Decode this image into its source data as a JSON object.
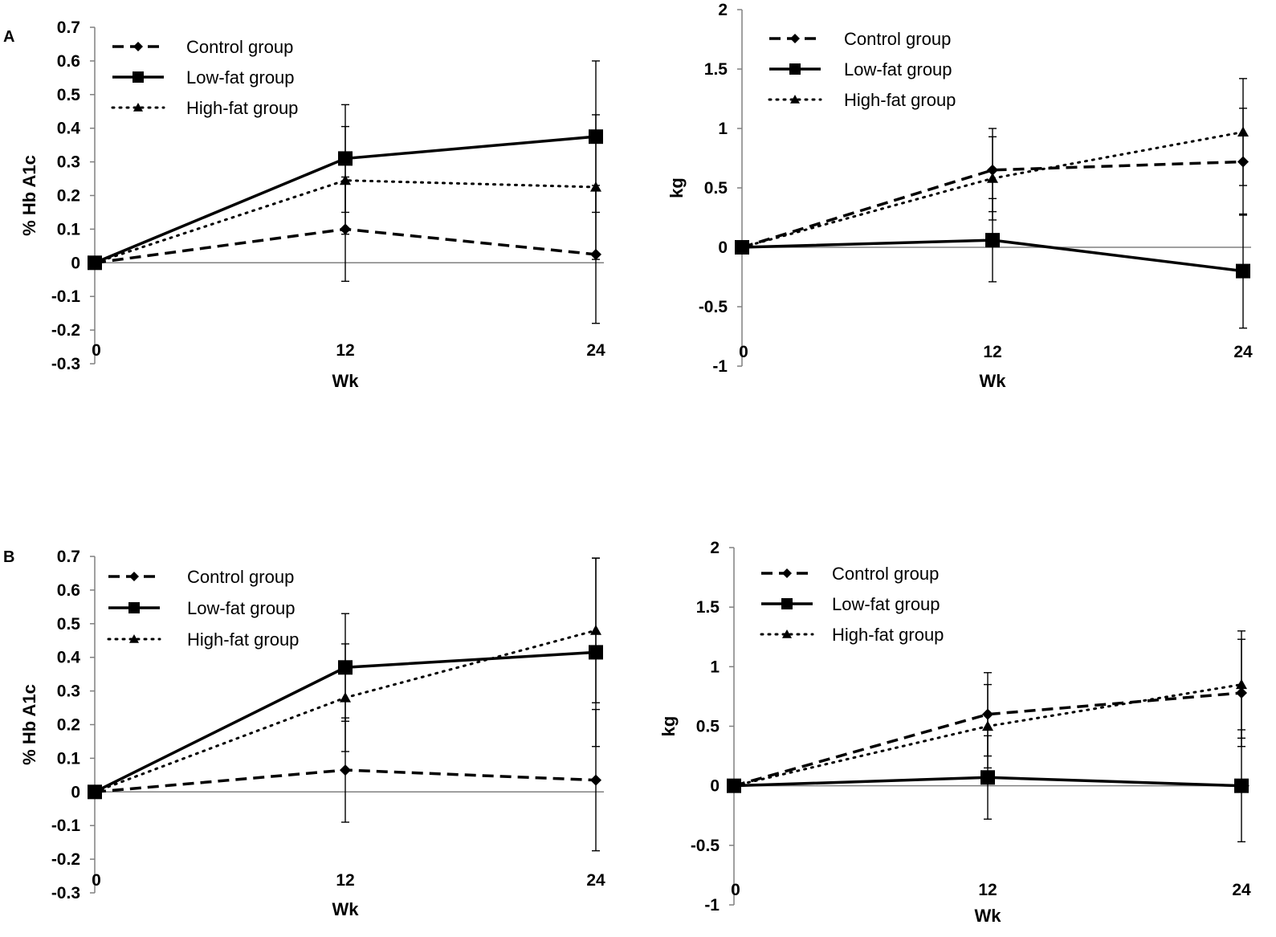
{
  "panels": [
    {
      "label": "A"
    },
    {
      "label": "B"
    }
  ],
  "chart_data": [
    {
      "type": "line",
      "panel": "A",
      "xlabel": "Wk",
      "ylabel": "% Hb A1c",
      "x": [
        0,
        12,
        24
      ],
      "x_ticks": [
        "0",
        "12",
        "24"
      ],
      "ylim": [
        -0.3,
        0.7
      ],
      "y_ticks": [
        "-0.3",
        "-0.2",
        "-0.1",
        "0",
        "0.1",
        "0.2",
        "0.3",
        "0.4",
        "0.5",
        "0.6",
        "0.7"
      ],
      "legend_position": "top-left",
      "series": [
        {
          "name": "Control group",
          "style": "dashed",
          "marker": "diamond",
          "values": [
            0,
            0.1,
            0.025
          ],
          "error": [
            0,
            0.155,
            0.205
          ]
        },
        {
          "name": "Low-fat group",
          "style": "solid",
          "marker": "square",
          "values": [
            0,
            0.31,
            0.375
          ],
          "error": [
            0,
            0.16,
            0.225
          ]
        },
        {
          "name": "High-fat group",
          "style": "dotted",
          "marker": "triangle",
          "values": [
            0,
            0.245,
            0.225
          ],
          "error": [
            0,
            0.16,
            0.215
          ]
        }
      ]
    },
    {
      "type": "line",
      "panel": "A",
      "xlabel": "Wk",
      "ylabel": "kg",
      "x": [
        0,
        12,
        24
      ],
      "x_ticks": [
        "0",
        "12",
        "24"
      ],
      "ylim": [
        -1,
        2
      ],
      "y_ticks": [
        "-1",
        "-0.5",
        "0",
        "0.5",
        "1",
        "1.5",
        "2"
      ],
      "legend_position": "top-left",
      "series": [
        {
          "name": "Control group",
          "style": "dashed",
          "marker": "diamond",
          "values": [
            0,
            0.65,
            0.72
          ],
          "error": [
            0,
            0.35,
            0.45
          ]
        },
        {
          "name": "Low-fat group",
          "style": "solid",
          "marker": "square",
          "values": [
            0,
            0.06,
            -0.2
          ],
          "error": [
            0,
            0.35,
            0.48
          ]
        },
        {
          "name": "High-fat group",
          "style": "dotted",
          "marker": "triangle",
          "values": [
            0,
            0.58,
            0.97
          ],
          "error": [
            0,
            0.35,
            0.45
          ]
        }
      ]
    },
    {
      "type": "line",
      "panel": "B",
      "xlabel": "Wk",
      "ylabel": "% Hb A1c",
      "x": [
        0,
        12,
        24
      ],
      "x_ticks": [
        "0",
        "12",
        "24"
      ],
      "ylim": [
        -0.3,
        0.7
      ],
      "y_ticks": [
        "-0.3",
        "-0.2",
        "-0.1",
        "0",
        "0.1",
        "0.2",
        "0.3",
        "0.4",
        "0.5",
        "0.6",
        "0.7"
      ],
      "legend_position": "top-left",
      "series": [
        {
          "name": "Control group",
          "style": "dashed",
          "marker": "diamond",
          "values": [
            0,
            0.065,
            0.035
          ],
          "error": [
            0,
            0.155,
            0.21
          ]
        },
        {
          "name": "Low-fat group",
          "style": "solid",
          "marker": "square",
          "values": [
            0,
            0.37,
            0.415
          ],
          "error": [
            0,
            0.16,
            0.28
          ]
        },
        {
          "name": "High-fat group",
          "style": "dotted",
          "marker": "triangle",
          "values": [
            0,
            0.28,
            0.48
          ],
          "error": [
            0,
            0.16,
            0.215
          ]
        }
      ]
    },
    {
      "type": "line",
      "panel": "B",
      "xlabel": "Wk",
      "ylabel": "kg",
      "x": [
        0,
        12,
        24
      ],
      "x_ticks": [
        "0",
        "12",
        "24"
      ],
      "ylim": [
        -1,
        2
      ],
      "y_ticks": [
        "-1",
        "-0.5",
        "0",
        "0.5",
        "1",
        "1.5",
        "2"
      ],
      "legend_position": "top-left",
      "series": [
        {
          "name": "Control group",
          "style": "dashed",
          "marker": "diamond",
          "values": [
            0,
            0.6,
            0.78
          ],
          "error": [
            0,
            0.35,
            0.45
          ]
        },
        {
          "name": "Low-fat group",
          "style": "solid",
          "marker": "square",
          "values": [
            0,
            0.07,
            0
          ],
          "error": [
            0,
            0.35,
            0.47
          ]
        },
        {
          "name": "High-fat group",
          "style": "dotted",
          "marker": "triangle",
          "values": [
            0,
            0.5,
            0.85
          ],
          "error": [
            0,
            0.35,
            0.45
          ]
        }
      ]
    }
  ]
}
